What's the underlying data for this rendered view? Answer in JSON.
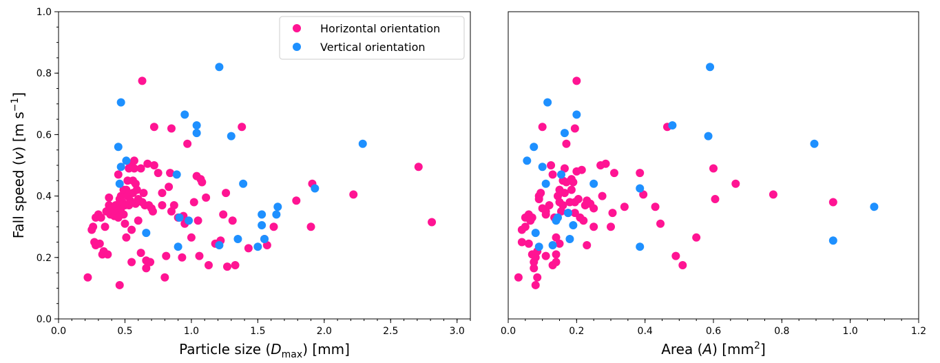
{
  "chart_data": [
    {
      "type": "scatter",
      "xlabel_parts": [
        "Particle size (",
        "D",
        "max",
        ") [mm]"
      ],
      "ylabel_parts": [
        "Fall speed (",
        "v",
        ") [m s",
        "−1",
        "]"
      ],
      "xlim": [
        0.0,
        3.1
      ],
      "ylim": [
        0.0,
        1.0
      ],
      "xticks": [
        "0.0",
        "0.5",
        "1.0",
        "1.5",
        "2.0",
        "2.5",
        "3.0"
      ],
      "yticks": [
        "0.0",
        "0.2",
        "0.4",
        "0.6",
        "0.8",
        "1.0"
      ],
      "legend": {
        "placement": "top-right"
      },
      "series": [
        {
          "name": "Horizontal orientation",
          "color": "#ff1493",
          "points": [
            [
              0.22,
              0.135
            ],
            [
              0.25,
              0.29
            ],
            [
              0.26,
              0.3
            ],
            [
              0.27,
              0.25
            ],
            [
              0.28,
              0.24
            ],
            [
              0.28,
              0.33
            ],
            [
              0.3,
              0.34
            ],
            [
              0.31,
              0.245
            ],
            [
              0.32,
              0.33
            ],
            [
              0.33,
              0.21
            ],
            [
              0.34,
              0.22
            ],
            [
              0.35,
              0.3
            ],
            [
              0.36,
              0.35
            ],
            [
              0.37,
              0.21
            ],
            [
              0.38,
              0.37
            ],
            [
              0.38,
              0.395
            ],
            [
              0.39,
              0.34
            ],
            [
              0.4,
              0.36
            ],
            [
              0.41,
              0.35
            ],
            [
              0.42,
              0.335
            ],
            [
              0.43,
              0.37
            ],
            [
              0.44,
              0.35
            ],
            [
              0.45,
              0.47
            ],
            [
              0.45,
              0.33
            ],
            [
              0.46,
              0.39
            ],
            [
              0.46,
              0.11
            ],
            [
              0.47,
              0.4
            ],
            [
              0.47,
              0.36
            ],
            [
              0.48,
              0.38
            ],
            [
              0.49,
              0.34
            ],
            [
              0.49,
              0.42
            ],
            [
              0.5,
              0.31
            ],
            [
              0.5,
              0.37
            ],
            [
              0.51,
              0.42
            ],
            [
              0.51,
              0.265
            ],
            [
              0.52,
              0.4
            ],
            [
              0.52,
              0.45
            ],
            [
              0.53,
              0.49
            ],
            [
              0.53,
              0.37
            ],
            [
              0.54,
              0.5
            ],
            [
              0.54,
              0.385
            ],
            [
              0.55,
              0.29
            ],
            [
              0.55,
              0.185
            ],
            [
              0.56,
              0.45
            ],
            [
              0.56,
              0.41
            ],
            [
              0.57,
              0.515
            ],
            [
              0.57,
              0.49
            ],
            [
              0.58,
              0.44
            ],
            [
              0.58,
              0.375
            ],
            [
              0.59,
              0.42
            ],
            [
              0.6,
              0.39
            ],
            [
              0.6,
              0.32
            ],
            [
              0.62,
              0.49
            ],
            [
              0.62,
              0.215
            ],
            [
              0.63,
              0.38
            ],
            [
              0.63,
              0.775
            ],
            [
              0.64,
              0.41
            ],
            [
              0.65,
              0.37
            ],
            [
              0.66,
              0.19
            ],
            [
              0.66,
              0.165
            ],
            [
              0.67,
              0.505
            ],
            [
              0.68,
              0.37
            ],
            [
              0.69,
              0.185
            ],
            [
              0.7,
              0.36
            ],
            [
              0.71,
              0.35
            ],
            [
              0.72,
              0.5
            ],
            [
              0.72,
              0.625
            ],
            [
              0.75,
              0.475
            ],
            [
              0.78,
              0.41
            ],
            [
              0.78,
              0.37
            ],
            [
              0.8,
              0.135
            ],
            [
              0.81,
              0.205
            ],
            [
              0.83,
              0.43
            ],
            [
              0.84,
              0.475
            ],
            [
              0.85,
              0.35
            ],
            [
              0.85,
              0.62
            ],
            [
              0.87,
              0.37
            ],
            [
              0.9,
              0.33
            ],
            [
              0.93,
              0.2
            ],
            [
              0.94,
              0.335
            ],
            [
              0.95,
              0.31
            ],
            [
              0.97,
              0.57
            ],
            [
              1.0,
              0.265
            ],
            [
              1.02,
              0.38
            ],
            [
              1.04,
              0.465
            ],
            [
              1.05,
              0.32
            ],
            [
              1.06,
              0.205
            ],
            [
              1.07,
              0.455
            ],
            [
              1.08,
              0.445
            ],
            [
              1.11,
              0.395
            ],
            [
              1.13,
              0.175
            ],
            [
              1.18,
              0.245
            ],
            [
              1.22,
              0.255
            ],
            [
              1.24,
              0.34
            ],
            [
              1.26,
              0.41
            ],
            [
              1.27,
              0.17
            ],
            [
              1.31,
              0.32
            ],
            [
              1.33,
              0.175
            ],
            [
              1.38,
              0.625
            ],
            [
              1.43,
              0.23
            ],
            [
              1.55,
              0.26
            ],
            [
              1.57,
              0.24
            ],
            [
              1.62,
              0.3
            ],
            [
              1.79,
              0.385
            ],
            [
              1.9,
              0.3
            ],
            [
              1.91,
              0.44
            ],
            [
              2.22,
              0.405
            ],
            [
              2.71,
              0.495
            ],
            [
              2.81,
              0.315
            ]
          ]
        },
        {
          "name": "Vertical orientation",
          "color": "#1e90ff",
          "points": [
            [
              0.45,
              0.56
            ],
            [
              0.46,
              0.44
            ],
            [
              0.47,
              0.495
            ],
            [
              0.47,
              0.705
            ],
            [
              0.51,
              0.515
            ],
            [
              0.66,
              0.28
            ],
            [
              0.89,
              0.47
            ],
            [
              0.9,
              0.235
            ],
            [
              0.91,
              0.33
            ],
            [
              0.95,
              0.665
            ],
            [
              0.98,
              0.32
            ],
            [
              1.04,
              0.605
            ],
            [
              1.04,
              0.63
            ],
            [
              1.21,
              0.82
            ],
            [
              1.21,
              0.24
            ],
            [
              1.3,
              0.595
            ],
            [
              1.35,
              0.26
            ],
            [
              1.39,
              0.44
            ],
            [
              1.5,
              0.235
            ],
            [
              1.53,
              0.305
            ],
            [
              1.53,
              0.34
            ],
            [
              1.55,
              0.26
            ],
            [
              1.64,
              0.34
            ],
            [
              1.65,
              0.365
            ],
            [
              1.93,
              0.425
            ],
            [
              2.29,
              0.57
            ]
          ]
        }
      ]
    },
    {
      "type": "scatter",
      "xlabel_parts": [
        "Area (",
        "A",
        ") [mm",
        "2",
        "]"
      ],
      "xlim": [
        0.0,
        1.2
      ],
      "ylim": [
        0.0,
        1.0
      ],
      "xticks": [
        "0.0",
        "0.2",
        "0.4",
        "0.6",
        "0.8",
        "1.0",
        "1.2"
      ],
      "series": [
        {
          "name": "Horizontal orientation",
          "color": "#ff1493",
          "points": [
            [
              0.03,
              0.135
            ],
            [
              0.04,
              0.29
            ],
            [
              0.04,
              0.25
            ],
            [
              0.05,
              0.33
            ],
            [
              0.05,
              0.3
            ],
            [
              0.06,
              0.245
            ],
            [
              0.06,
              0.34
            ],
            [
              0.065,
              0.32
            ],
            [
              0.07,
              0.33
            ],
            [
              0.07,
              0.21
            ],
            [
              0.075,
              0.185
            ],
            [
              0.075,
              0.165
            ],
            [
              0.08,
              0.2
            ],
            [
              0.08,
              0.11
            ],
            [
              0.085,
              0.135
            ],
            [
              0.085,
              0.22
            ],
            [
              0.09,
              0.4
            ],
            [
              0.09,
              0.39
            ],
            [
              0.095,
              0.41
            ],
            [
              0.1,
              0.36
            ],
            [
              0.1,
              0.625
            ],
            [
              0.11,
              0.35
            ],
            [
              0.11,
              0.34
            ],
            [
              0.11,
              0.205
            ],
            [
              0.12,
              0.37
            ],
            [
              0.125,
              0.5
            ],
            [
              0.13,
              0.175
            ],
            [
              0.13,
              0.47
            ],
            [
              0.135,
              0.33
            ],
            [
              0.14,
              0.185
            ],
            [
              0.14,
              0.21
            ],
            [
              0.14,
              0.265
            ],
            [
              0.145,
              0.4
            ],
            [
              0.15,
              0.38
            ],
            [
              0.15,
              0.42
            ],
            [
              0.15,
              0.245
            ],
            [
              0.155,
              0.35
            ],
            [
              0.16,
              0.37
            ],
            [
              0.16,
              0.45
            ],
            [
              0.165,
              0.49
            ],
            [
              0.165,
              0.41
            ],
            [
              0.17,
              0.445
            ],
            [
              0.17,
              0.57
            ],
            [
              0.175,
              0.345
            ],
            [
              0.18,
              0.38
            ],
            [
              0.185,
              0.42
            ],
            [
              0.185,
              0.455
            ],
            [
              0.19,
              0.445
            ],
            [
              0.195,
              0.345
            ],
            [
              0.195,
              0.38
            ],
            [
              0.195,
              0.62
            ],
            [
              0.2,
              0.775
            ],
            [
              0.2,
              0.48
            ],
            [
              0.205,
              0.39
            ],
            [
              0.21,
              0.33
            ],
            [
              0.215,
              0.485
            ],
            [
              0.22,
              0.32
            ],
            [
              0.225,
              0.37
            ],
            [
              0.23,
              0.385
            ],
            [
              0.23,
              0.24
            ],
            [
              0.24,
              0.375
            ],
            [
              0.25,
              0.3
            ],
            [
              0.25,
              0.36
            ],
            [
              0.27,
              0.5
            ],
            [
              0.275,
              0.4
            ],
            [
              0.285,
              0.505
            ],
            [
              0.3,
              0.3
            ],
            [
              0.305,
              0.345
            ],
            [
              0.31,
              0.475
            ],
            [
              0.34,
              0.365
            ],
            [
              0.385,
              0.475
            ],
            [
              0.395,
              0.405
            ],
            [
              0.43,
              0.365
            ],
            [
              0.445,
              0.31
            ],
            [
              0.465,
              0.625
            ],
            [
              0.49,
              0.205
            ],
            [
              0.51,
              0.175
            ],
            [
              0.55,
              0.265
            ],
            [
              0.6,
              0.49
            ],
            [
              0.605,
              0.39
            ],
            [
              0.665,
              0.44
            ],
            [
              0.775,
              0.405
            ],
            [
              0.95,
              0.38
            ]
          ]
        },
        {
          "name": "Vertical orientation",
          "color": "#1e90ff",
          "points": [
            [
              0.055,
              0.515
            ],
            [
              0.075,
              0.56
            ],
            [
              0.08,
              0.28
            ],
            [
              0.09,
              0.235
            ],
            [
              0.1,
              0.495
            ],
            [
              0.11,
              0.44
            ],
            [
              0.115,
              0.705
            ],
            [
              0.13,
              0.24
            ],
            [
              0.14,
              0.32
            ],
            [
              0.145,
              0.33
            ],
            [
              0.155,
              0.47
            ],
            [
              0.165,
              0.605
            ],
            [
              0.175,
              0.345
            ],
            [
              0.18,
              0.26
            ],
            [
              0.19,
              0.305
            ],
            [
              0.2,
              0.665
            ],
            [
              0.25,
              0.44
            ],
            [
              0.385,
              0.235
            ],
            [
              0.385,
              0.425
            ],
            [
              0.48,
              0.63
            ],
            [
              0.585,
              0.595
            ],
            [
              0.59,
              0.82
            ],
            [
              0.895,
              0.57
            ],
            [
              0.95,
              0.255
            ],
            [
              1.07,
              0.365
            ]
          ]
        }
      ]
    }
  ]
}
